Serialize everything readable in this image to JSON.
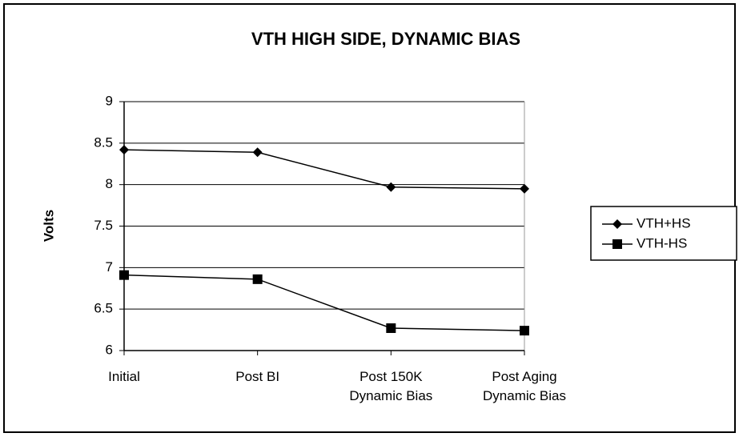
{
  "chart_data": {
    "type": "line",
    "title": "VTH HIGH SIDE, DYNAMIC BIAS",
    "y_label": "Volts",
    "categories": [
      "Initial",
      "Post BI",
      "Post 150K\nDynamic Bias",
      "Post Aging\nDynamic Bias"
    ],
    "series": [
      {
        "name": "VTH+HS",
        "color": "#000000",
        "marker": "diamond",
        "values": [
          8.42,
          8.39,
          7.97,
          7.95
        ]
      },
      {
        "name": "VTH-HS",
        "color": "#000000",
        "marker": "square",
        "values": [
          6.91,
          6.86,
          6.27,
          6.24
        ]
      }
    ],
    "ylim": [
      6,
      9
    ],
    "yticks": [
      6,
      6.5,
      7,
      7.5,
      8,
      8.5,
      9
    ],
    "grid": true,
    "legend": "right"
  }
}
